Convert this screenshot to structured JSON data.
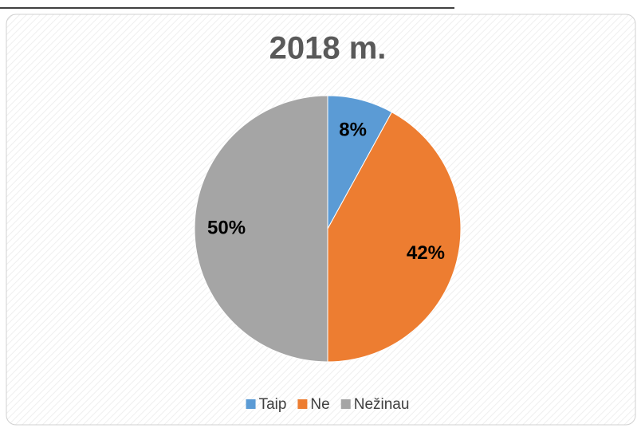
{
  "chart_data": {
    "type": "pie",
    "title": "2018 m.",
    "categories": [
      "Taip",
      "Ne",
      "Nežinau"
    ],
    "values": [
      8,
      42,
      50
    ],
    "value_labels": [
      "8%",
      "42%",
      "50%"
    ],
    "colors": [
      "#5b9bd5",
      "#ed7d31",
      "#a5a5a5"
    ],
    "legend": "bottom"
  }
}
